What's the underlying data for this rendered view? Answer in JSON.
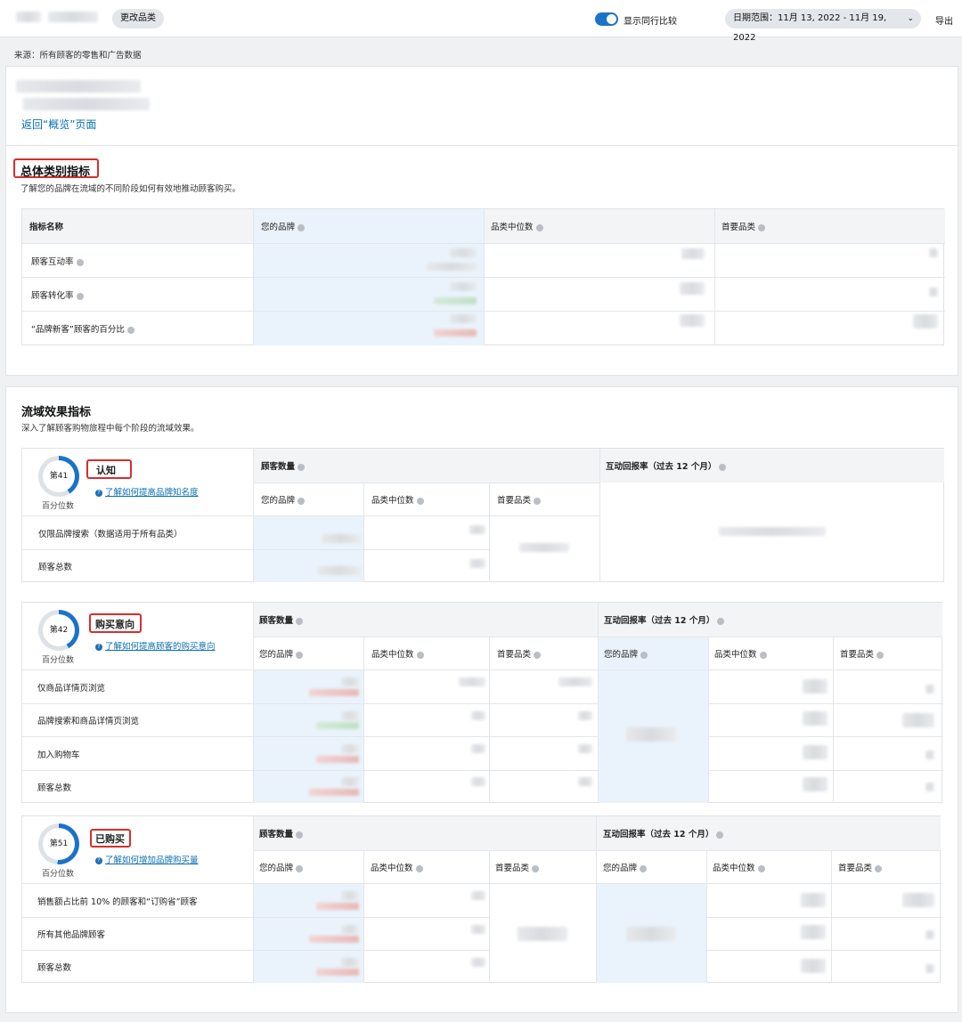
{
  "topbar": {
    "change_category": "更改品类",
    "show_peer": "显示同行比较",
    "date_range": "日期范围：11月 13, 2022 - 11月 19, 2022",
    "export": "导出"
  },
  "source_note": "来源：所有顾客的零售和广告数据",
  "back_link": "返回“概览”页面",
  "overall": {
    "title": "总体类别指标",
    "desc": "了解您的品牌在流域的不同阶段如何有效地推动顾客购买。",
    "headers": [
      "指标名称",
      "您的品牌",
      "品类中位数",
      "首要品类"
    ],
    "rows": [
      "顾客互动率",
      "顾客转化率",
      "“品牌新客”顾客的百分比"
    ]
  },
  "funnel": {
    "title": "流域效果指标",
    "desc": "深入了解顾客购物旅程中每个阶段的流域效果。",
    "percentile_label": "百分位数",
    "customer_count": "顾客数量",
    "return_rate": "互动回报率（过去 12 个月）",
    "sub_headers": [
      "您的品牌",
      "品类中位数",
      "首要品类"
    ],
    "stages": [
      {
        "rank": "第41",
        "label": "认知",
        "link": "了解如何提高品牌知名度",
        "rows": [
          "仅限品牌搜索（数据适用于所有品类）",
          "顾客总数"
        ],
        "percent": 41
      },
      {
        "rank": "第42",
        "label": "购买意向",
        "link": "了解如何提高顾客的购买意向",
        "rows": [
          "仅商品详情页浏览",
          "品牌搜索和商品详情页浏览",
          "加入购物车",
          "顾客总数"
        ],
        "percent": 42
      },
      {
        "rank": "第51",
        "label": "已购买",
        "link": "了解如何增加品牌购买量",
        "rows": [
          "销售额占比前 10% 的顾客和“订购省”顾客",
          "所有其他品牌顾客",
          "顾客总数"
        ],
        "percent": 51
      }
    ]
  },
  "colors": {
    "accent": "#1a73c8",
    "highlight": "#d92d2d"
  }
}
